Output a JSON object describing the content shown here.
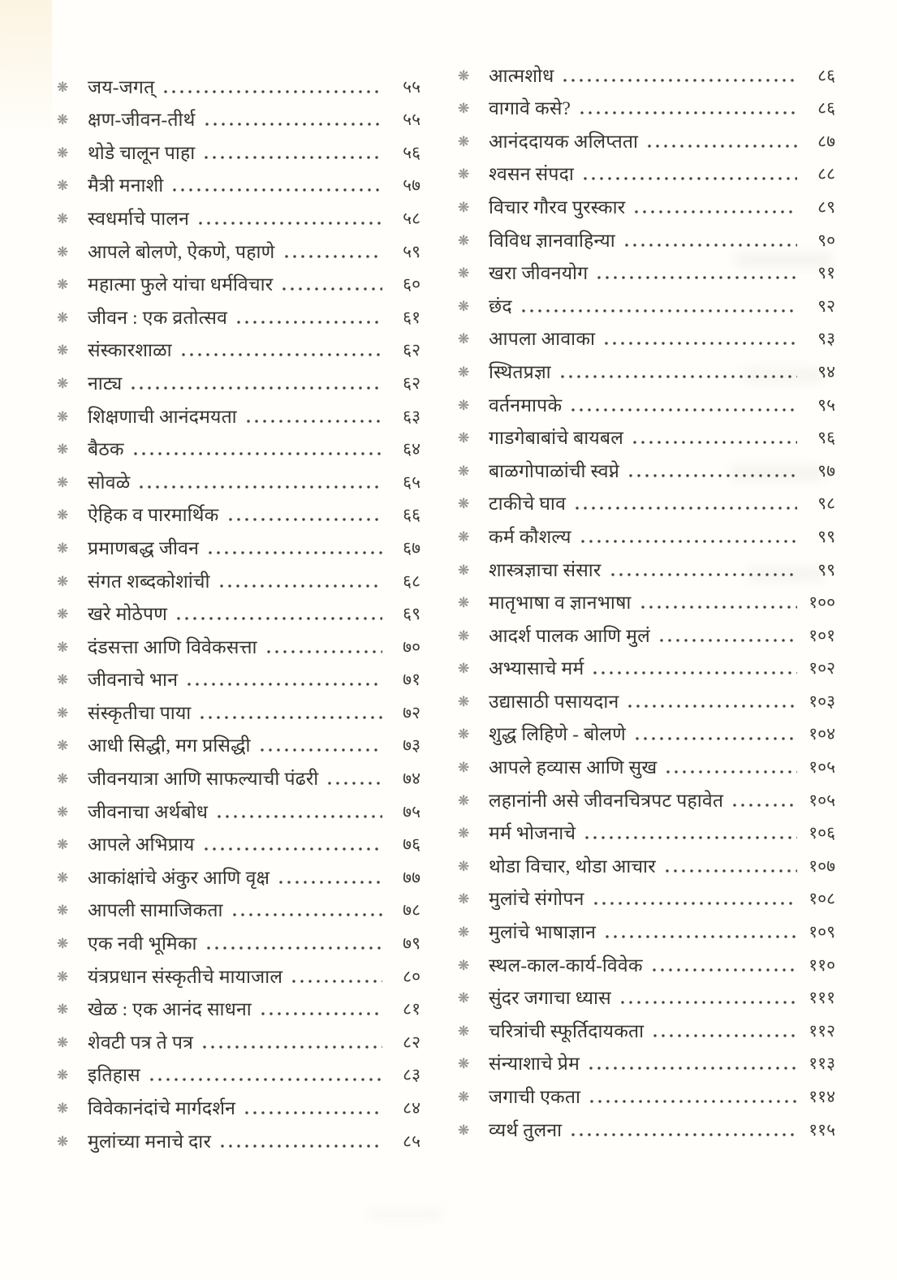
{
  "bullet_glyph": "❋",
  "bullet_icon": "flower-asterisk-icon",
  "colors": {
    "paper": "#fffefa",
    "ink": "#37332c",
    "bullet_gray": "#93918a",
    "leader_dots": "#45423c",
    "edge_cream": "#fcf2dc"
  },
  "columns": [
    {
      "entries": [
        {
          "title": "जय-जगत्",
          "page": "५५"
        },
        {
          "title": "क्षण-जीवन-तीर्थ",
          "page": "५५"
        },
        {
          "title": "थोडे चालून पाहा",
          "page": "५६"
        },
        {
          "title": "मैत्री मनाशी",
          "page": "५७"
        },
        {
          "title": "स्वधर्माचे पालन",
          "page": "५८"
        },
        {
          "title": "आपले बोलणे, ऐकणे, पहाणे",
          "page": "५९"
        },
        {
          "title": "महात्मा फुले यांचा धर्मविचार",
          "page": "६०"
        },
        {
          "title": "जीवन : एक व्रतोत्सव",
          "page": "६१"
        },
        {
          "title": "संस्कारशाळा",
          "page": "६२"
        },
        {
          "title": "नाट्य",
          "page": "६२"
        },
        {
          "title": "शिक्षणाची आनंदमयता",
          "page": "६३"
        },
        {
          "title": "बैठक",
          "page": "६४"
        },
        {
          "title": "सोवळे",
          "page": "६५"
        },
        {
          "title": "ऐहिक व पारमार्थिक",
          "page": "६६"
        },
        {
          "title": "प्रमाणबद्ध जीवन",
          "page": "६७"
        },
        {
          "title": "संगत शब्दकोशांची",
          "page": "६८"
        },
        {
          "title": "खरे मोठेपण",
          "page": "६९"
        },
        {
          "title": "दंडसत्ता आणि विवेकसत्ता",
          "page": "७०"
        },
        {
          "title": "जीवनाचे भान",
          "page": "७१"
        },
        {
          "title": "संस्कृतीचा पाया",
          "page": "७२"
        },
        {
          "title": "आधी सिद्धी, मग प्रसिद्धी",
          "page": "७३"
        },
        {
          "title": "जीवनयात्रा आणि साफल्याची पंढरी",
          "page": "७४"
        },
        {
          "title": "जीवनाचा अर्थबोध",
          "page": "७५"
        },
        {
          "title": "आपले अभिप्राय",
          "page": "७६"
        },
        {
          "title": "आकांक्षांचे अंकुर आणि वृक्ष",
          "page": "७७"
        },
        {
          "title": "आपली सामाजिकता",
          "page": "७८"
        },
        {
          "title": "एक नवी भूमिका",
          "page": "७९"
        },
        {
          "title": "यंत्रप्रधान संस्कृतीचे मायाजाल",
          "page": "८०"
        },
        {
          "title": "खेळ : एक आनंद साधना",
          "page": "८१"
        },
        {
          "title": "शेवटी पत्र ते पत्र",
          "page": "८२"
        },
        {
          "title": "इतिहास",
          "page": "८३"
        },
        {
          "title": "विवेकानंदांचे मार्गदर्शन",
          "page": "८४"
        },
        {
          "title": "मुलांच्या मनाचे दार",
          "page": "८५"
        }
      ]
    },
    {
      "entries": [
        {
          "title": "आत्मशोध",
          "page": "८६"
        },
        {
          "title": "वागावे कसे?",
          "page": "८६"
        },
        {
          "title": "आनंददायक अलिप्तता",
          "page": "८७"
        },
        {
          "title": "श्वसन संपदा",
          "page": "८८"
        },
        {
          "title": "विचार गौरव पुरस्कार",
          "page": "८९"
        },
        {
          "title": "विविध ज्ञानवाहिन्या",
          "page": "९०"
        },
        {
          "title": "खरा जीवनयोग",
          "page": "९१"
        },
        {
          "title": "छंद",
          "page": "९२"
        },
        {
          "title": "आपला आवाका",
          "page": "९३"
        },
        {
          "title": "स्थितप्रज्ञा",
          "page": "९४"
        },
        {
          "title": "वर्तनमापके",
          "page": "९५"
        },
        {
          "title": "गाडगेबाबांचे बायबल",
          "page": "९६"
        },
        {
          "title": "बाळगोपाळांची स्वप्ने",
          "page": "९७"
        },
        {
          "title": "टाकीचे घाव",
          "page": "९८"
        },
        {
          "title": "कर्म कौशल्य",
          "page": "९९"
        },
        {
          "title": "शास्त्रज्ञाचा संसार",
          "page": "९९"
        },
        {
          "title": "मातृभाषा व ज्ञानभाषा",
          "page": "१००"
        },
        {
          "title": "आदर्श पालक आणि मुलं",
          "page": "१०१"
        },
        {
          "title": "अभ्यासाचे मर्म",
          "page": "१०२"
        },
        {
          "title": "उद्यासाठी पसायदान",
          "page": "१०३"
        },
        {
          "title": "शुद्ध लिहिणे - बोलणे",
          "page": "१०४"
        },
        {
          "title": "आपले हव्यास आणि सुख",
          "page": "१०५"
        },
        {
          "title": "लहानांनी असे जीवनचित्रपट पहावेत",
          "page": "१०५"
        },
        {
          "title": "मर्म भोजनाचे",
          "page": "१०६"
        },
        {
          "title": "थोडा विचार, थोडा आचार",
          "page": "१०७"
        },
        {
          "title": "मुलांचे संगोपन",
          "page": "१०८"
        },
        {
          "title": "मुलांचे भाषाज्ञान",
          "page": "१०९"
        },
        {
          "title": "स्थल-काल-कार्य-विवेक",
          "page": "११०"
        },
        {
          "title": "सुंदर जगाचा ध्यास",
          "page": "१११"
        },
        {
          "title": "चरित्रांची स्फूर्तिदायकता",
          "page": "११२"
        },
        {
          "title": "संन्याशाचे प्रेम",
          "page": "११३"
        },
        {
          "title": "जगाची एकता",
          "page": "११४"
        },
        {
          "title": "व्यर्थ तुलना",
          "page": "११५"
        }
      ]
    }
  ]
}
